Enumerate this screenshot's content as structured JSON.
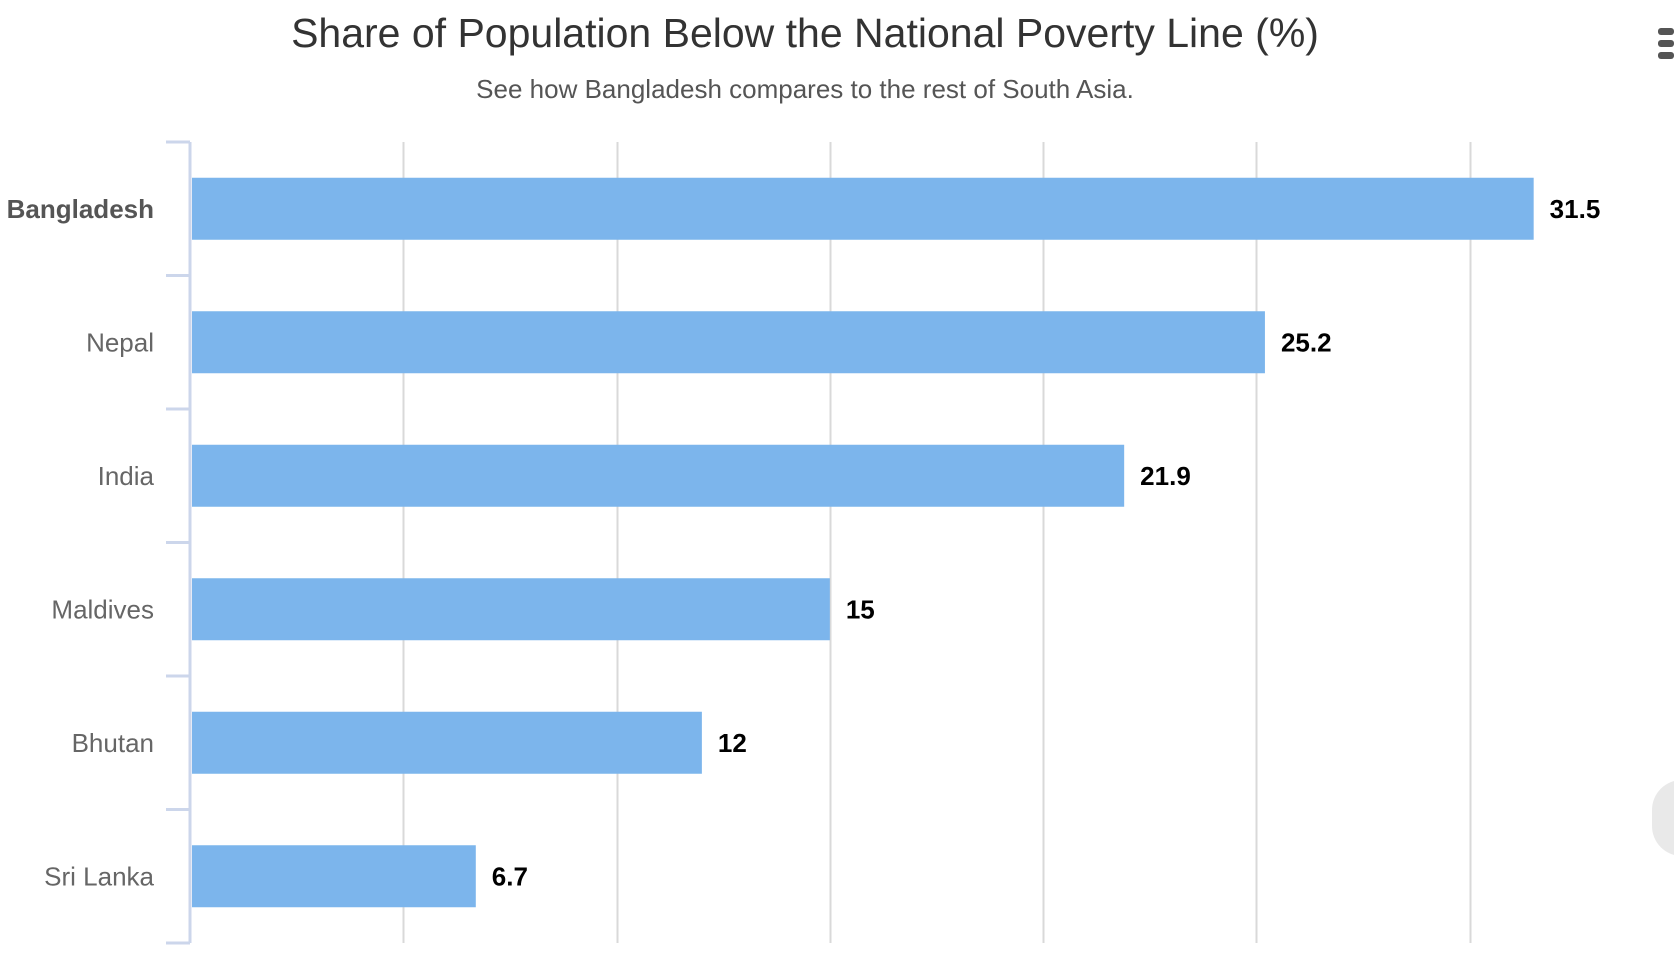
{
  "chart_data": {
    "type": "bar",
    "orientation": "horizontal",
    "title": "Share of Population Below the National Poverty Line (%)",
    "subtitle": "See how Bangladesh compares to the rest of South Asia.",
    "xlabel": "",
    "ylabel": "",
    "categories": [
      "Bangladesh",
      "Nepal",
      "India",
      "Maldives",
      "Bhutan",
      "Sri Lanka"
    ],
    "values": [
      31.5,
      25.2,
      21.9,
      15,
      12,
      6.7
    ],
    "value_labels": [
      "31.5",
      "25.2",
      "21.9",
      "15",
      "12",
      "6.7"
    ],
    "highlight_category": "Bangladesh",
    "xlim": [
      0,
      32
    ],
    "grid_step": 5,
    "grid": true,
    "legend": "none",
    "bar_color": "#7cb5ec",
    "grid_color": "#d9d9d9",
    "axis_color": "#ccd6eb"
  }
}
